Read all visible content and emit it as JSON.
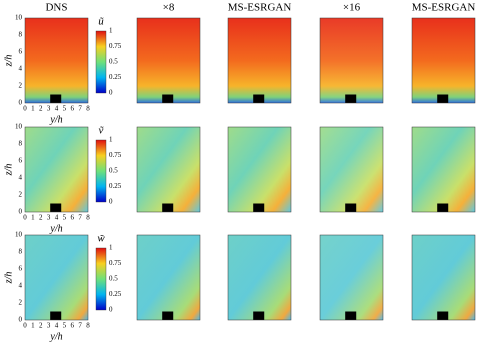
{
  "columns": [
    "DNS",
    "×8",
    "MS-ESRGAN",
    "×16",
    "MS-ESRGAN"
  ],
  "rows": [
    {
      "colorbar_label": "ũ"
    },
    {
      "colorbar_label": "ṽ"
    },
    {
      "colorbar_label": "w̃"
    }
  ],
  "colorbar_ticks": [
    "0",
    "0.25",
    "0.5",
    "0.75",
    "1"
  ],
  "axes": {
    "y_label": "z/h",
    "x_label": "y/h",
    "y_ticks": [
      "0",
      "2",
      "4",
      "6",
      "8",
      "10"
    ],
    "x_ticks": [
      "0",
      "1",
      "2",
      "3",
      "4",
      "5",
      "6",
      "7",
      "8"
    ]
  }
}
